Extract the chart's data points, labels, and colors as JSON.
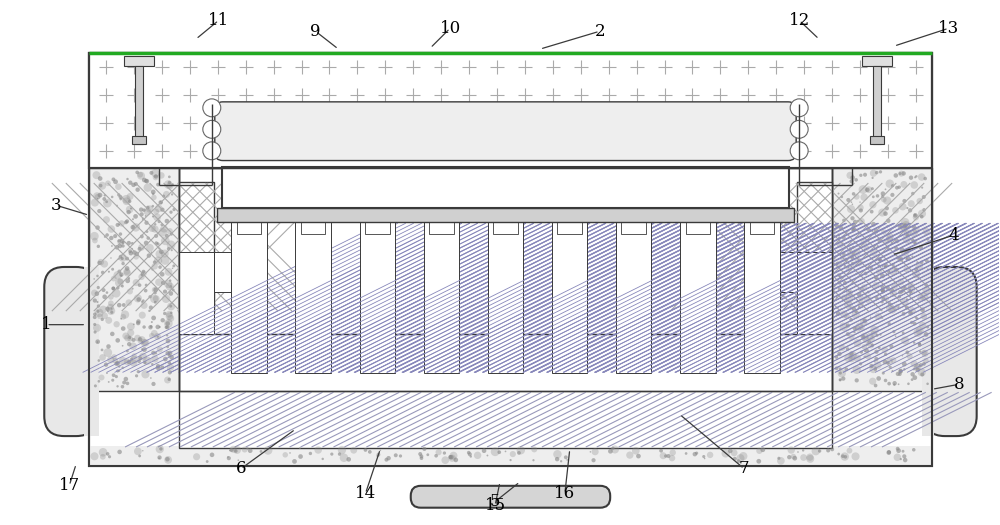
{
  "bg_color": "#ffffff",
  "line_color": "#3a3a3a",
  "fig_width": 10.0,
  "fig_height": 5.25,
  "green_line_color": "#22aa22",
  "hatch_fg": "#888888",
  "speckle_color": "#999999",
  "plus_color": "#aaaaaa",
  "circle_color": "#666666",
  "xhatch_color": "#999999",
  "fin_hatch_color": "#8888cc",
  "label_fontsize": 12
}
